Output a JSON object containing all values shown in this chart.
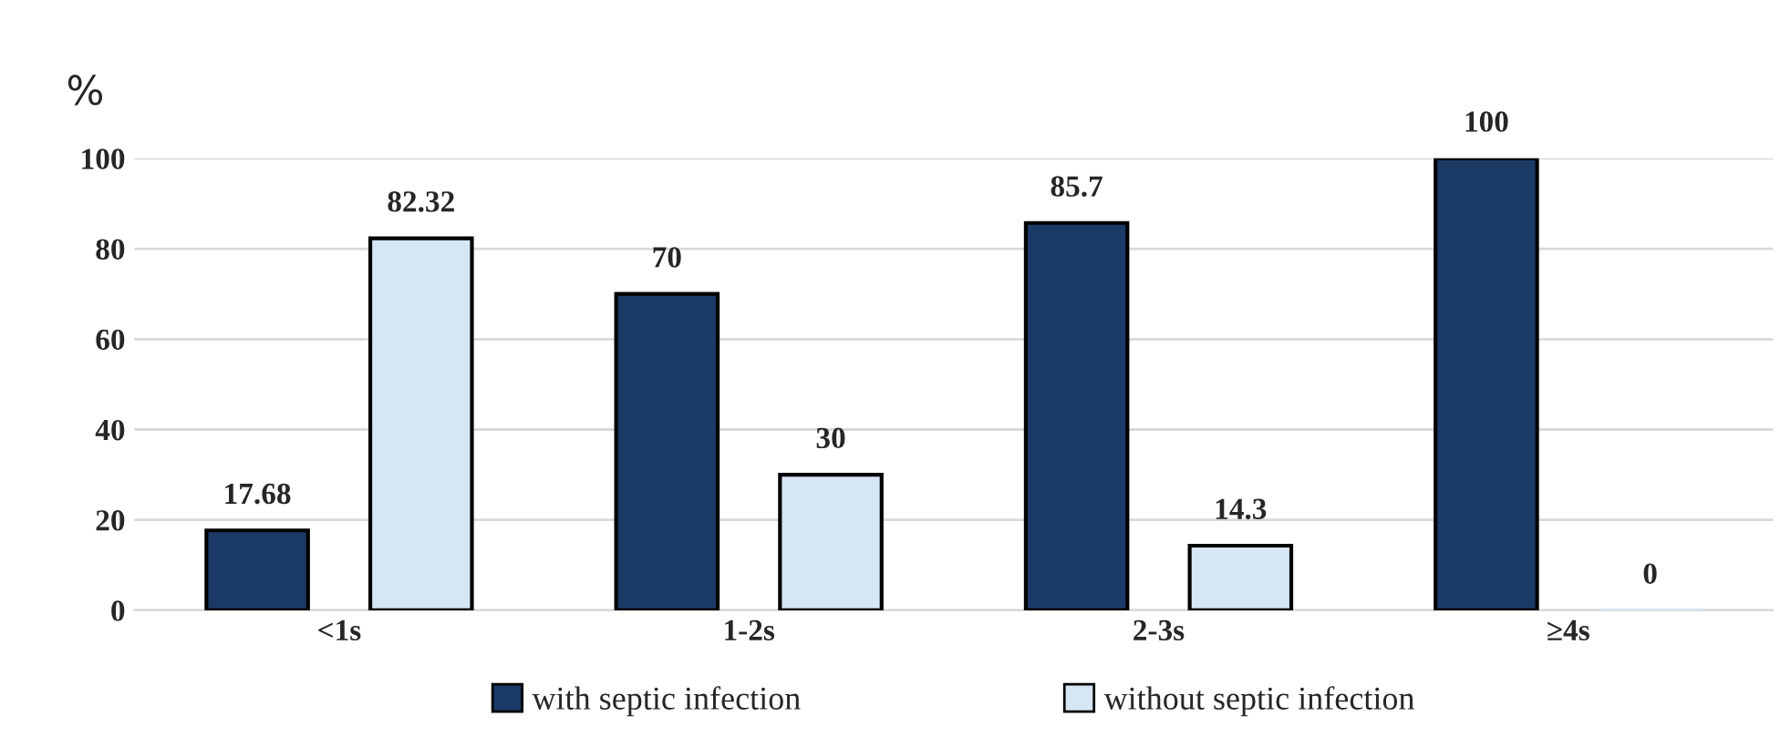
{
  "chart_data": {
    "type": "bar",
    "ylabel": "%",
    "categories": [
      "<1s",
      "1-2s",
      "2-3s",
      "≥4s"
    ],
    "series": [
      {
        "name": "with septic infection",
        "color": "#1b3a66",
        "values": [
          17.68,
          70,
          85.7,
          100
        ]
      },
      {
        "name": "without septic infection",
        "color": "#d6e6f4",
        "values": [
          82.32,
          30,
          14.3,
          0
        ]
      }
    ],
    "ylim": [
      0,
      100
    ],
    "yticks": [
      0,
      20,
      40,
      60,
      80,
      100
    ],
    "grid": "y",
    "legend": "bottom",
    "data_labels": true
  }
}
